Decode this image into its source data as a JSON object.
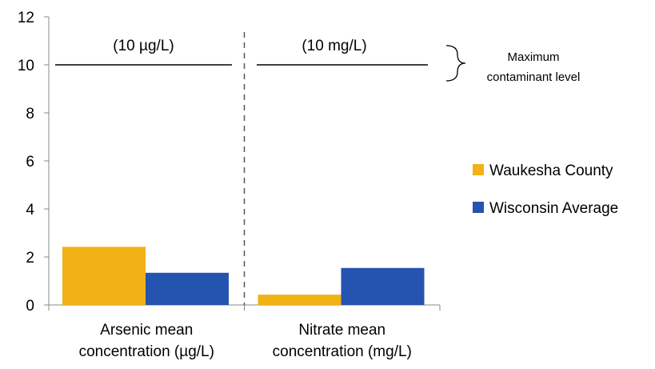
{
  "chart_data": {
    "type": "bar",
    "categories": [
      [
        "Arsenic mean",
        "concentration (µg/L)"
      ],
      [
        "Nitrate mean",
        "concentration (mg/L)"
      ]
    ],
    "series": [
      {
        "name": "Waukesha County",
        "values": [
          2.42,
          0.43
        ]
      },
      {
        "name": "Wisconsin Average",
        "values": [
          1.34,
          1.54
        ]
      }
    ],
    "ylim": [
      0,
      12
    ],
    "yticks": [
      0,
      2,
      4,
      6,
      8,
      10,
      12
    ],
    "xlabel": "",
    "ylabel": "",
    "grid": false,
    "legend_position": "right",
    "reference_line": {
      "value": 10,
      "labels": [
        "(10 µg/L)",
        "(10 mg/L)"
      ],
      "annotation": [
        "Maximum",
        "contaminant level"
      ]
    },
    "colors": {
      "series": [
        "#F2B114",
        "#2553B0"
      ],
      "axis": "#888888",
      "divider": "#555555"
    }
  }
}
